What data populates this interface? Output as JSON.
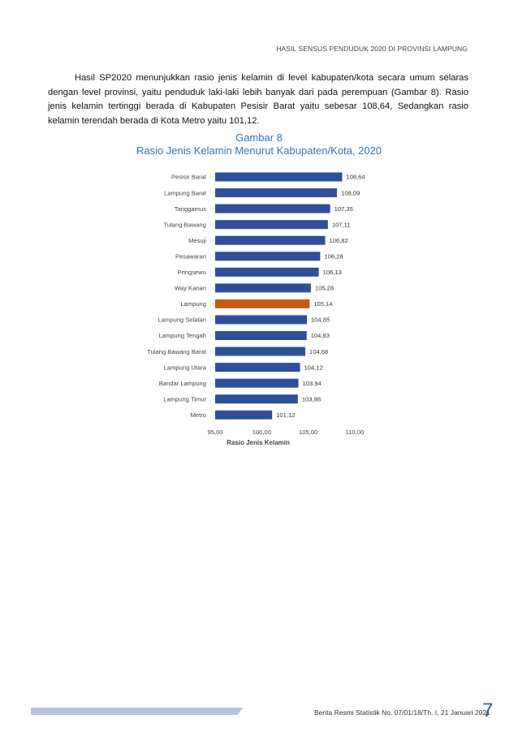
{
  "header": {
    "text": "HASIL SENSUS PENDUDUK 2020  DI PROVINSI LAMPUNG"
  },
  "paragraph": {
    "text": "Hasil SP2020 menunjukkan rasio jenis kelamin di level kabupaten/kota secara umum selaras dengan level provinsi, yaitu penduduk laki-laki lebih banyak dari pada perempuan (Gambar 8). Rasio jenis kelamin tertinggi berada di Kabupaten Pesisir Barat yaitu sebesar 108,64, Sedangkan rasio kelamin terendah berada  di Kota Metro yaitu 101,12."
  },
  "figure": {
    "label": "Gambar 8",
    "title": "Rasio Jenis Kelamin Menurut Kabupaten/Kota, 2020"
  },
  "chart_data": {
    "type": "bar",
    "orientation": "horizontal",
    "categories": [
      "Pesisir Barat",
      "Lampung Barat",
      "Tanggamus",
      "Tulang Bawang",
      "Mesuji",
      "Pesawaran",
      "Pringsewu",
      "Way Kanan",
      "Lampung",
      "Lampung Selatan",
      "Lampung Tengah",
      "Tulang Bawang Barat",
      "Lampung Utara",
      "Bandar Lampung",
      "Lampung Timur",
      "Metro"
    ],
    "values": [
      108.64,
      108.09,
      107.35,
      107.11,
      106.82,
      106.28,
      106.13,
      105.28,
      105.14,
      104.85,
      104.83,
      104.68,
      104.12,
      103.94,
      103.88,
      101.12
    ],
    "value_labels": [
      "108,64",
      "108,09",
      "107,35",
      "107,11",
      "106,82",
      "106,28",
      "106,13",
      "105,28",
      "105,14",
      "104,85",
      "104,83",
      "104,68",
      "104,12",
      "103,94",
      "103,88",
      "101,12"
    ],
    "xlim": [
      95,
      110
    ],
    "x_ticks": [
      "95,00",
      "100,00",
      "105,00",
      "110,00"
    ],
    "xlabel": "Rasio Jenis Kelamin",
    "ylabel": "",
    "grid": false,
    "colors": {
      "default": "#2e4f9a",
      "highlight": "#c55a11"
    },
    "highlight_category": "Lampung"
  },
  "footer": {
    "text": "Berita Resmi Statistik No.  07/01/18/Th. I, 21 Januari 2021",
    "page_number": "7"
  }
}
